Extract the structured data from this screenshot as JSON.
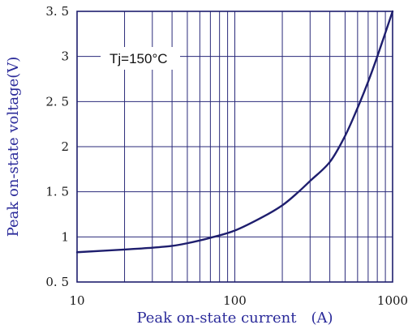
{
  "chart_data": {
    "type": "line",
    "xlabel": "Peak on-state current　(A)",
    "ylabel": "Peak on-state voltage(V)",
    "annotation": "Tj=150°C",
    "x_scale": "log",
    "xlim": [
      10,
      1000
    ],
    "ylim": [
      0.5,
      3.5
    ],
    "x_ticks": [
      {
        "value": 10,
        "label": "10"
      },
      {
        "value": 100,
        "label": "100"
      },
      {
        "value": 1000,
        "label": "1000"
      }
    ],
    "y_ticks": [
      {
        "value": 0.5,
        "label": "0. 5"
      },
      {
        "value": 1,
        "label": "1"
      },
      {
        "value": 1.5,
        "label": "1. 5"
      },
      {
        "value": 2,
        "label": "2"
      },
      {
        "value": 2.5,
        "label": "2. 5"
      },
      {
        "value": 3,
        "label": "3"
      },
      {
        "value": 3.5,
        "label": "3. 5"
      }
    ],
    "grid": true,
    "colors": {
      "line": "#1e1e6e",
      "grid": "#2a2a7a",
      "axis_label": "#2b2b9a"
    },
    "series": [
      {
        "x": [
          10,
          20,
          30,
          40,
          50,
          70,
          100,
          150,
          200,
          250,
          300,
          400,
          500,
          600,
          700,
          800,
          1000
        ],
        "values": [
          0.83,
          0.86,
          0.88,
          0.9,
          0.93,
          0.99,
          1.07,
          1.22,
          1.35,
          1.49,
          1.62,
          1.83,
          2.12,
          2.43,
          2.72,
          3.0,
          3.5
        ]
      }
    ]
  }
}
